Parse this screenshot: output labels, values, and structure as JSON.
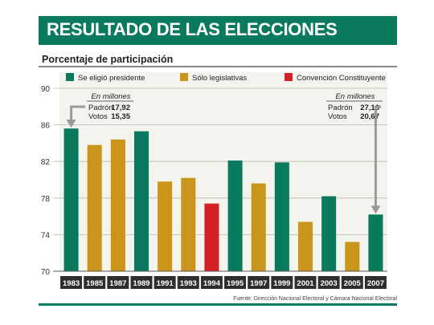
{
  "header": {
    "title": "RESULTADO DE LAS ELECCIONES"
  },
  "chart_data": {
    "type": "bar",
    "subtitle": "Porcentaje de participación",
    "categories": [
      "1983",
      "1985",
      "1987",
      "1989",
      "1991",
      "1993",
      "1994",
      "1995",
      "1997",
      "1999",
      "2001",
      "2003",
      "2005",
      "2007"
    ],
    "values": [
      85.6,
      83.8,
      84.4,
      85.3,
      79.8,
      80.2,
      77.4,
      82.1,
      79.6,
      81.9,
      75.4,
      78.2,
      73.2,
      76.2
    ],
    "bar_types": [
      "pres",
      "leg",
      "leg",
      "pres",
      "leg",
      "leg",
      "conv",
      "pres",
      "leg",
      "pres",
      "leg",
      "pres",
      "leg",
      "pres"
    ],
    "ylim": [
      70,
      90
    ],
    "yticks": [
      70,
      74,
      78,
      82,
      86,
      90
    ],
    "legend": [
      {
        "key": "pres",
        "label": "Se eligió presidente",
        "color": "#0a7a5e"
      },
      {
        "key": "leg",
        "label": "Sólo legislativas",
        "color": "#c9961b"
      },
      {
        "key": "conv",
        "label": "Convención Constituyente",
        "color": "#d62028"
      }
    ],
    "annotations": [
      {
        "year": "1983",
        "heading": "En millones",
        "rows": [
          {
            "label": "Padrón",
            "value": "17,92"
          },
          {
            "label": "Votos",
            "value": "15,35"
          }
        ]
      },
      {
        "year": "2007",
        "heading": "En millones",
        "rows": [
          {
            "label": "Padrón",
            "value": "27,16"
          },
          {
            "label": "Votos",
            "value": "20,67"
          }
        ]
      }
    ],
    "source": "Fuente: Dirección Nacional Electoral y Cámara Nacional Electoral"
  }
}
